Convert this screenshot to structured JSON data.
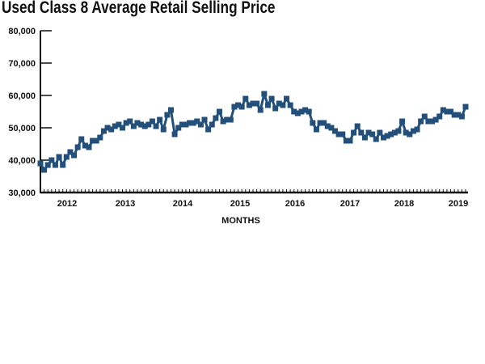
{
  "chart_data": {
    "type": "line",
    "title": "Used Class 8 Average Retail Selling Price",
    "xlabel": "MONTHS",
    "ylabel": "",
    "ylim": [
      30000,
      80000
    ],
    "y_ticks": [
      "30,000",
      "40,000",
      "50,000",
      "60,000",
      "70,000",
      "80,000"
    ],
    "y_tick_values": [
      30000,
      40000,
      50000,
      60000,
      70000,
      80000
    ],
    "x_tick_labels": [
      "2012",
      "2013",
      "2014",
      "2015",
      "2016",
      "2017",
      "2018",
      "2019"
    ],
    "grid": false,
    "color": "#23507a",
    "series": [
      {
        "name": "Average Retail Selling Price",
        "values": [
          39000,
          37000,
          38500,
          40000,
          38500,
          41000,
          38500,
          41000,
          42500,
          41500,
          44000,
          46500,
          44500,
          44000,
          46000,
          46000,
          47000,
          49000,
          50000,
          49500,
          50500,
          51000,
          50000,
          51500,
          52000,
          50500,
          51500,
          51000,
          50500,
          51000,
          52000,
          50500,
          52500,
          49500,
          54000,
          55500,
          48000,
          50000,
          51000,
          51000,
          51500,
          51500,
          52000,
          51000,
          52500,
          49500,
          51000,
          53000,
          55000,
          52000,
          52500,
          52500,
          56500,
          57000,
          56500,
          59000,
          57000,
          57500,
          57500,
          55500,
          60500,
          57000,
          59000,
          56000,
          57500,
          57000,
          59000,
          57000,
          55000,
          54500,
          55000,
          55500,
          55000,
          51500,
          49500,
          51500,
          51500,
          50500,
          50000,
          49000,
          48000,
          48000,
          46000,
          46000,
          48500,
          50500,
          48500,
          47000,
          48500,
          48000,
          46500,
          48500,
          47000,
          47500,
          48000,
          48500,
          49000,
          52000,
          48500,
          48000,
          49000,
          49500,
          52000,
          53500,
          52000,
          52000,
          52500,
          53500,
          55500,
          55000,
          55000,
          54000,
          54000,
          53500,
          56500
        ]
      }
    ]
  }
}
